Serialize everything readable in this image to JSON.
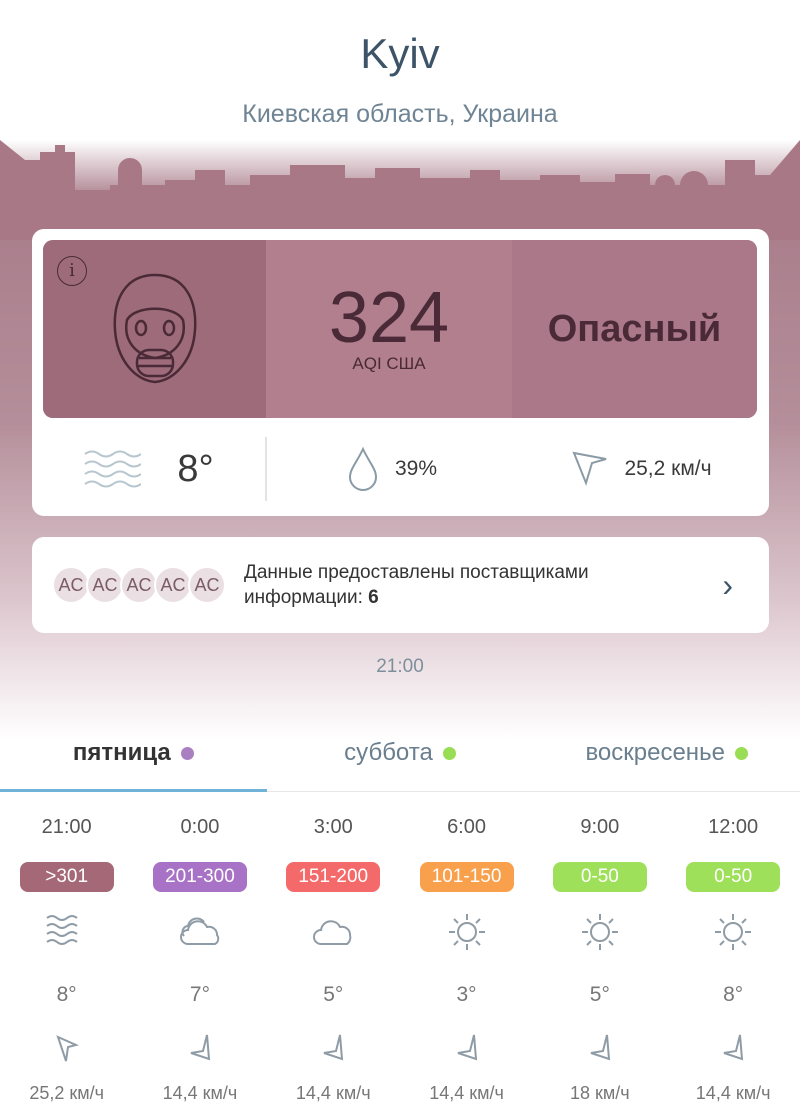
{
  "header": {
    "city": "Kyiv",
    "region": "Киевская область, Украина"
  },
  "current": {
    "aqi": "324",
    "aqi_unit": "AQI США",
    "level": "Опасный",
    "temperature": "8°",
    "humidity": "39%",
    "wind": "25,2 км/ч",
    "color": "#9e6b7b"
  },
  "providers": {
    "avatars": [
      "AC",
      "AC",
      "AC",
      "AC",
      "AC"
    ],
    "text": "Данные предоставлены поставщиками информации:",
    "count": "6"
  },
  "updated_time": "21:00",
  "tabs": [
    {
      "label": "пятница",
      "dot": "#a97fc2",
      "active": true
    },
    {
      "label": "суббота",
      "dot": "#99dd55"
    },
    {
      "label": "воскресенье",
      "dot": "#99dd55"
    }
  ],
  "forecast": [
    {
      "time": "21:00",
      "aqi": ">301",
      "color": "#a56877",
      "icon": "haze",
      "temp": "8°",
      "wind": "25,2 км/ч",
      "wind_dir": "down"
    },
    {
      "time": "0:00",
      "aqi": "201-300",
      "color": "#a873c6",
      "icon": "cloudy",
      "temp": "7°",
      "wind": "14,4 км/ч",
      "wind_dir": "left"
    },
    {
      "time": "3:00",
      "aqi": "151-200",
      "color": "#f46a6a",
      "icon": "cloud",
      "temp": "5°",
      "wind": "14,4 км/ч",
      "wind_dir": "left"
    },
    {
      "time": "6:00",
      "aqi": "101-150",
      "color": "#f9a04c",
      "icon": "sun",
      "temp": "3°",
      "wind": "14,4 км/ч",
      "wind_dir": "left"
    },
    {
      "time": "9:00",
      "aqi": "0-50",
      "color": "#9fe05a",
      "icon": "sun",
      "temp": "5°",
      "wind": "18 км/ч",
      "wind_dir": "left"
    },
    {
      "time": "12:00",
      "aqi": "0-50",
      "color": "#9fe05a",
      "icon": "sun",
      "temp": "8°",
      "wind": "14,4 км/ч",
      "wind_dir": "left"
    }
  ]
}
